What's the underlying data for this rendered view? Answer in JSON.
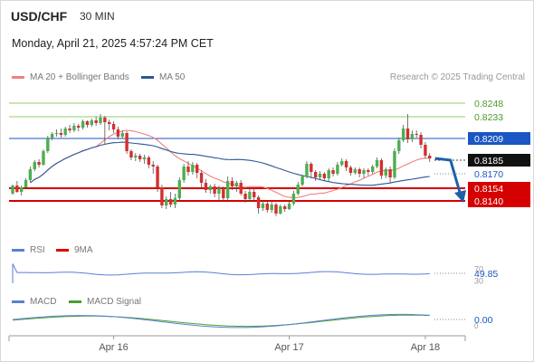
{
  "header": {
    "symbol": "USD/CHF",
    "interval": "30 MIN",
    "datetime": "Monday, April 21, 2025 4:57:24 PM CET"
  },
  "legends": {
    "price": [
      {
        "label": "MA 20 + Bollinger Bands",
        "color": "#f08080"
      },
      {
        "label": "MA 50",
        "color": "#2b5797"
      }
    ],
    "rsi": [
      {
        "label": "RSI",
        "color": "#5b7fd6"
      },
      {
        "label": "9MA",
        "color": "#e00000"
      }
    ],
    "macd": [
      {
        "label": "MACD",
        "color": "#5b7fd6"
      },
      {
        "label": "MACD Signal",
        "color": "#4aa02c"
      }
    ]
  },
  "credit": "Research © 2025 Trading Central",
  "colors": {
    "up": "#4caf50",
    "down": "#d32f2f",
    "resistance_green": "#8fce6a",
    "pivot_blue": "#1a56c4",
    "support_red": "#d50000",
    "arrow": "#1f5fa8",
    "ma20": "#f08080",
    "ma50": "#2b5797"
  },
  "chart_data": {
    "type": "candlestick",
    "ylim": [
      0.8118,
      0.8262
    ],
    "x_ticks": [
      {
        "label": "Apr 16",
        "index": 23
      },
      {
        "label": "Apr 17",
        "index": 63
      },
      {
        "label": "Apr 18",
        "index": 94
      }
    ],
    "levels": [
      {
        "label": "0.8248",
        "value": 0.8248,
        "style": "resistance"
      },
      {
        "label": "0.8233",
        "value": 0.8233,
        "style": "resistance"
      },
      {
        "label": "0.8209",
        "value": 0.8209,
        "style": "pivot"
      },
      {
        "label": "0.8185",
        "value": 0.8185,
        "style": "current"
      },
      {
        "label": "0.8170",
        "value": 0.817,
        "style": "plain"
      },
      {
        "label": "0.8154",
        "value": 0.8154,
        "style": "support"
      },
      {
        "label": "0.8140",
        "value": 0.814,
        "style": "support"
      }
    ],
    "forecast_arrow": {
      "from": 0.8185,
      "to": 0.814
    },
    "candles": [
      [
        0.8148,
        0.8157,
        0.8147,
        0.8158
      ],
      [
        0.8157,
        0.815,
        0.8149,
        0.8162
      ],
      [
        0.815,
        0.8155,
        0.8146,
        0.8157
      ],
      [
        0.8155,
        0.8163,
        0.8153,
        0.8165
      ],
      [
        0.8163,
        0.8175,
        0.8161,
        0.8178
      ],
      [
        0.8175,
        0.8183,
        0.8173,
        0.8185
      ],
      [
        0.8183,
        0.818,
        0.8177,
        0.8186
      ],
      [
        0.818,
        0.8195,
        0.8179,
        0.8197
      ],
      [
        0.8195,
        0.821,
        0.8193,
        0.8212
      ],
      [
        0.821,
        0.8214,
        0.8207,
        0.8216
      ],
      [
        0.8214,
        0.8215,
        0.8211,
        0.8219
      ],
      [
        0.8215,
        0.8213,
        0.821,
        0.822
      ],
      [
        0.8213,
        0.822,
        0.8211,
        0.8222
      ],
      [
        0.822,
        0.8218,
        0.8215,
        0.8224
      ],
      [
        0.8218,
        0.8223,
        0.8216,
        0.8226
      ],
      [
        0.8223,
        0.8221,
        0.8217,
        0.8225
      ],
      [
        0.8221,
        0.8228,
        0.8219,
        0.823
      ],
      [
        0.8228,
        0.8224,
        0.8221,
        0.8229
      ],
      [
        0.8224,
        0.8229,
        0.8222,
        0.8231
      ],
      [
        0.8229,
        0.8226,
        0.8223,
        0.8233
      ],
      [
        0.8226,
        0.8232,
        0.8224,
        0.8236
      ],
      [
        0.8232,
        0.8227,
        0.8202,
        0.8234
      ],
      [
        0.8227,
        0.8225,
        0.8218,
        0.823
      ],
      [
        0.8225,
        0.8219,
        0.8215,
        0.8228
      ],
      [
        0.8219,
        0.8211,
        0.8208,
        0.8222
      ],
      [
        0.8211,
        0.8215,
        0.8209,
        0.8218
      ],
      [
        0.8215,
        0.8195,
        0.8192,
        0.8217
      ],
      [
        0.8195,
        0.8188,
        0.8185,
        0.8197
      ],
      [
        0.8188,
        0.819,
        0.8184,
        0.8193
      ],
      [
        0.819,
        0.8186,
        0.8183,
        0.8192
      ],
      [
        0.8186,
        0.8188,
        0.8181,
        0.8191
      ],
      [
        0.8188,
        0.818,
        0.8176,
        0.819
      ],
      [
        0.818,
        0.8178,
        0.817,
        0.8184
      ],
      [
        0.8178,
        0.8155,
        0.815,
        0.818
      ],
      [
        0.8155,
        0.8135,
        0.8132,
        0.8158
      ],
      [
        0.8135,
        0.8142,
        0.8131,
        0.8145
      ],
      [
        0.8142,
        0.8136,
        0.8133,
        0.815
      ],
      [
        0.8136,
        0.8143,
        0.8132,
        0.8148
      ],
      [
        0.8143,
        0.8163,
        0.814,
        0.8166
      ],
      [
        0.8163,
        0.8178,
        0.816,
        0.8181
      ],
      [
        0.8178,
        0.8172,
        0.8168,
        0.8184
      ],
      [
        0.8172,
        0.818,
        0.8169,
        0.8183
      ],
      [
        0.818,
        0.8171,
        0.8165,
        0.8182
      ],
      [
        0.8171,
        0.816,
        0.8155,
        0.8174
      ],
      [
        0.816,
        0.8152,
        0.8149,
        0.8164
      ],
      [
        0.8152,
        0.8156,
        0.8148,
        0.8158
      ],
      [
        0.8156,
        0.8148,
        0.8144,
        0.8159
      ],
      [
        0.8148,
        0.8154,
        0.814,
        0.8157
      ],
      [
        0.8154,
        0.8143,
        0.814,
        0.8156
      ],
      [
        0.8143,
        0.8162,
        0.8141,
        0.8167
      ],
      [
        0.8162,
        0.8156,
        0.8152,
        0.8166
      ],
      [
        0.8156,
        0.816,
        0.815,
        0.8162
      ],
      [
        0.816,
        0.8148,
        0.8146,
        0.8163
      ],
      [
        0.8148,
        0.8142,
        0.8138,
        0.8151
      ],
      [
        0.8142,
        0.815,
        0.814,
        0.8155
      ],
      [
        0.815,
        0.8144,
        0.8141,
        0.8153
      ],
      [
        0.8144,
        0.8132,
        0.8126,
        0.8146
      ],
      [
        0.8132,
        0.8137,
        0.8129,
        0.814
      ],
      [
        0.8137,
        0.813,
        0.8127,
        0.8139
      ],
      [
        0.813,
        0.8136,
        0.8127,
        0.814
      ],
      [
        0.8136,
        0.8126,
        0.8123,
        0.8138
      ],
      [
        0.8126,
        0.8134,
        0.8125,
        0.8136
      ],
      [
        0.8134,
        0.8131,
        0.8128,
        0.8136
      ],
      [
        0.8131,
        0.8137,
        0.813,
        0.8139
      ],
      [
        0.8137,
        0.8148,
        0.8135,
        0.8151
      ],
      [
        0.8148,
        0.8158,
        0.8146,
        0.8161
      ],
      [
        0.8158,
        0.8167,
        0.8156,
        0.8169
      ],
      [
        0.8167,
        0.8181,
        0.8165,
        0.8184
      ],
      [
        0.8181,
        0.8172,
        0.8165,
        0.8183
      ],
      [
        0.8172,
        0.8166,
        0.8162,
        0.8174
      ],
      [
        0.8166,
        0.817,
        0.8163,
        0.8173
      ],
      [
        0.817,
        0.8165,
        0.8162,
        0.8172
      ],
      [
        0.8165,
        0.8174,
        0.8162,
        0.8176
      ],
      [
        0.8174,
        0.817,
        0.8167,
        0.8177
      ],
      [
        0.817,
        0.818,
        0.8168,
        0.8183
      ],
      [
        0.818,
        0.8184,
        0.8178,
        0.8187
      ],
      [
        0.8184,
        0.8177,
        0.8173,
        0.8186
      ],
      [
        0.8177,
        0.8171,
        0.8168,
        0.8179
      ],
      [
        0.8171,
        0.8175,
        0.8169,
        0.8177
      ],
      [
        0.8175,
        0.817,
        0.8166,
        0.8177
      ],
      [
        0.817,
        0.8174,
        0.8165,
        0.8176
      ],
      [
        0.8174,
        0.8172,
        0.8168,
        0.8176
      ],
      [
        0.8172,
        0.8178,
        0.817,
        0.818
      ],
      [
        0.8178,
        0.8185,
        0.8176,
        0.8188
      ],
      [
        0.8185,
        0.8168,
        0.8164,
        0.8187
      ],
      [
        0.8168,
        0.8175,
        0.8165,
        0.8177
      ],
      [
        0.8175,
        0.8166,
        0.816,
        0.8178
      ],
      [
        0.8166,
        0.8195,
        0.8164,
        0.8198
      ],
      [
        0.8195,
        0.8207,
        0.8192,
        0.821
      ],
      [
        0.8207,
        0.822,
        0.8205,
        0.8224
      ],
      [
        0.822,
        0.8208,
        0.8204,
        0.8236
      ],
      [
        0.8208,
        0.8214,
        0.8205,
        0.8218
      ],
      [
        0.8214,
        0.8213,
        0.821,
        0.8218
      ],
      [
        0.8213,
        0.8202,
        0.8198,
        0.8216
      ],
      [
        0.8202,
        0.819,
        0.8187,
        0.8205
      ],
      [
        0.819,
        0.8187,
        0.8183,
        0.8193
      ]
    ],
    "rsi": {
      "label": "49.85",
      "value": 49.85,
      "scale_labels": [
        "70",
        "30"
      ]
    },
    "macd": {
      "label": "0.00",
      "value": 0.0,
      "scale_labels": [
        "0"
      ]
    }
  }
}
